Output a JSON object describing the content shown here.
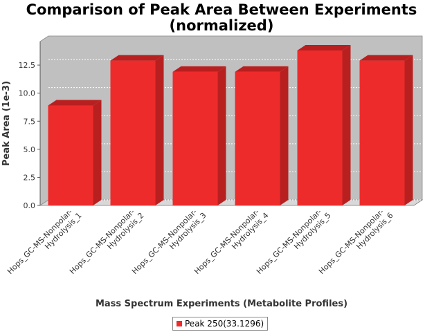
{
  "chart_data": {
    "type": "bar",
    "title": [
      "Comparison of Peak Area Between Experiments",
      "(normalized)"
    ],
    "xlabel": "Mass Spectrum Experiments (Metabolite Profiles)",
    "ylabel": "Peak Area (1e-3)",
    "categories": [
      [
        "Hops_GC-MS-Nonpolar-",
        "Hydrolysis_1"
      ],
      [
        "Hops_GC-MS-Nonpolar-",
        "Hydrolysis_2"
      ],
      [
        "Hops_GC-MS-Nonpolar-",
        "Hydrolysis_3"
      ],
      [
        "Hops_GC-MS-Nonpolar-",
        "Hydrolysis_4"
      ],
      [
        "Hops_GC-MS-Nonpolar-",
        "Hydrolysis_5"
      ],
      [
        "Hops_GC-MS-Nonpolar-",
        "Hydrolysis_6"
      ]
    ],
    "series": [
      {
        "name": "Peak 250(33.1296)",
        "values": [
          8.9,
          12.9,
          11.9,
          11.9,
          13.8,
          12.9
        ]
      }
    ],
    "ylim": [
      0,
      14.6
    ],
    "yticks": [
      "0.0",
      "2.5",
      "5.0",
      "7.5",
      "10.0",
      "12.5"
    ],
    "grid": true,
    "legend_position": "bottom-center",
    "colors": {
      "bar": "#ee2b2b",
      "bar_side": "#b82020",
      "plot_bg": "#c0c0c0",
      "plot_wall": "#d8d8d8"
    }
  }
}
